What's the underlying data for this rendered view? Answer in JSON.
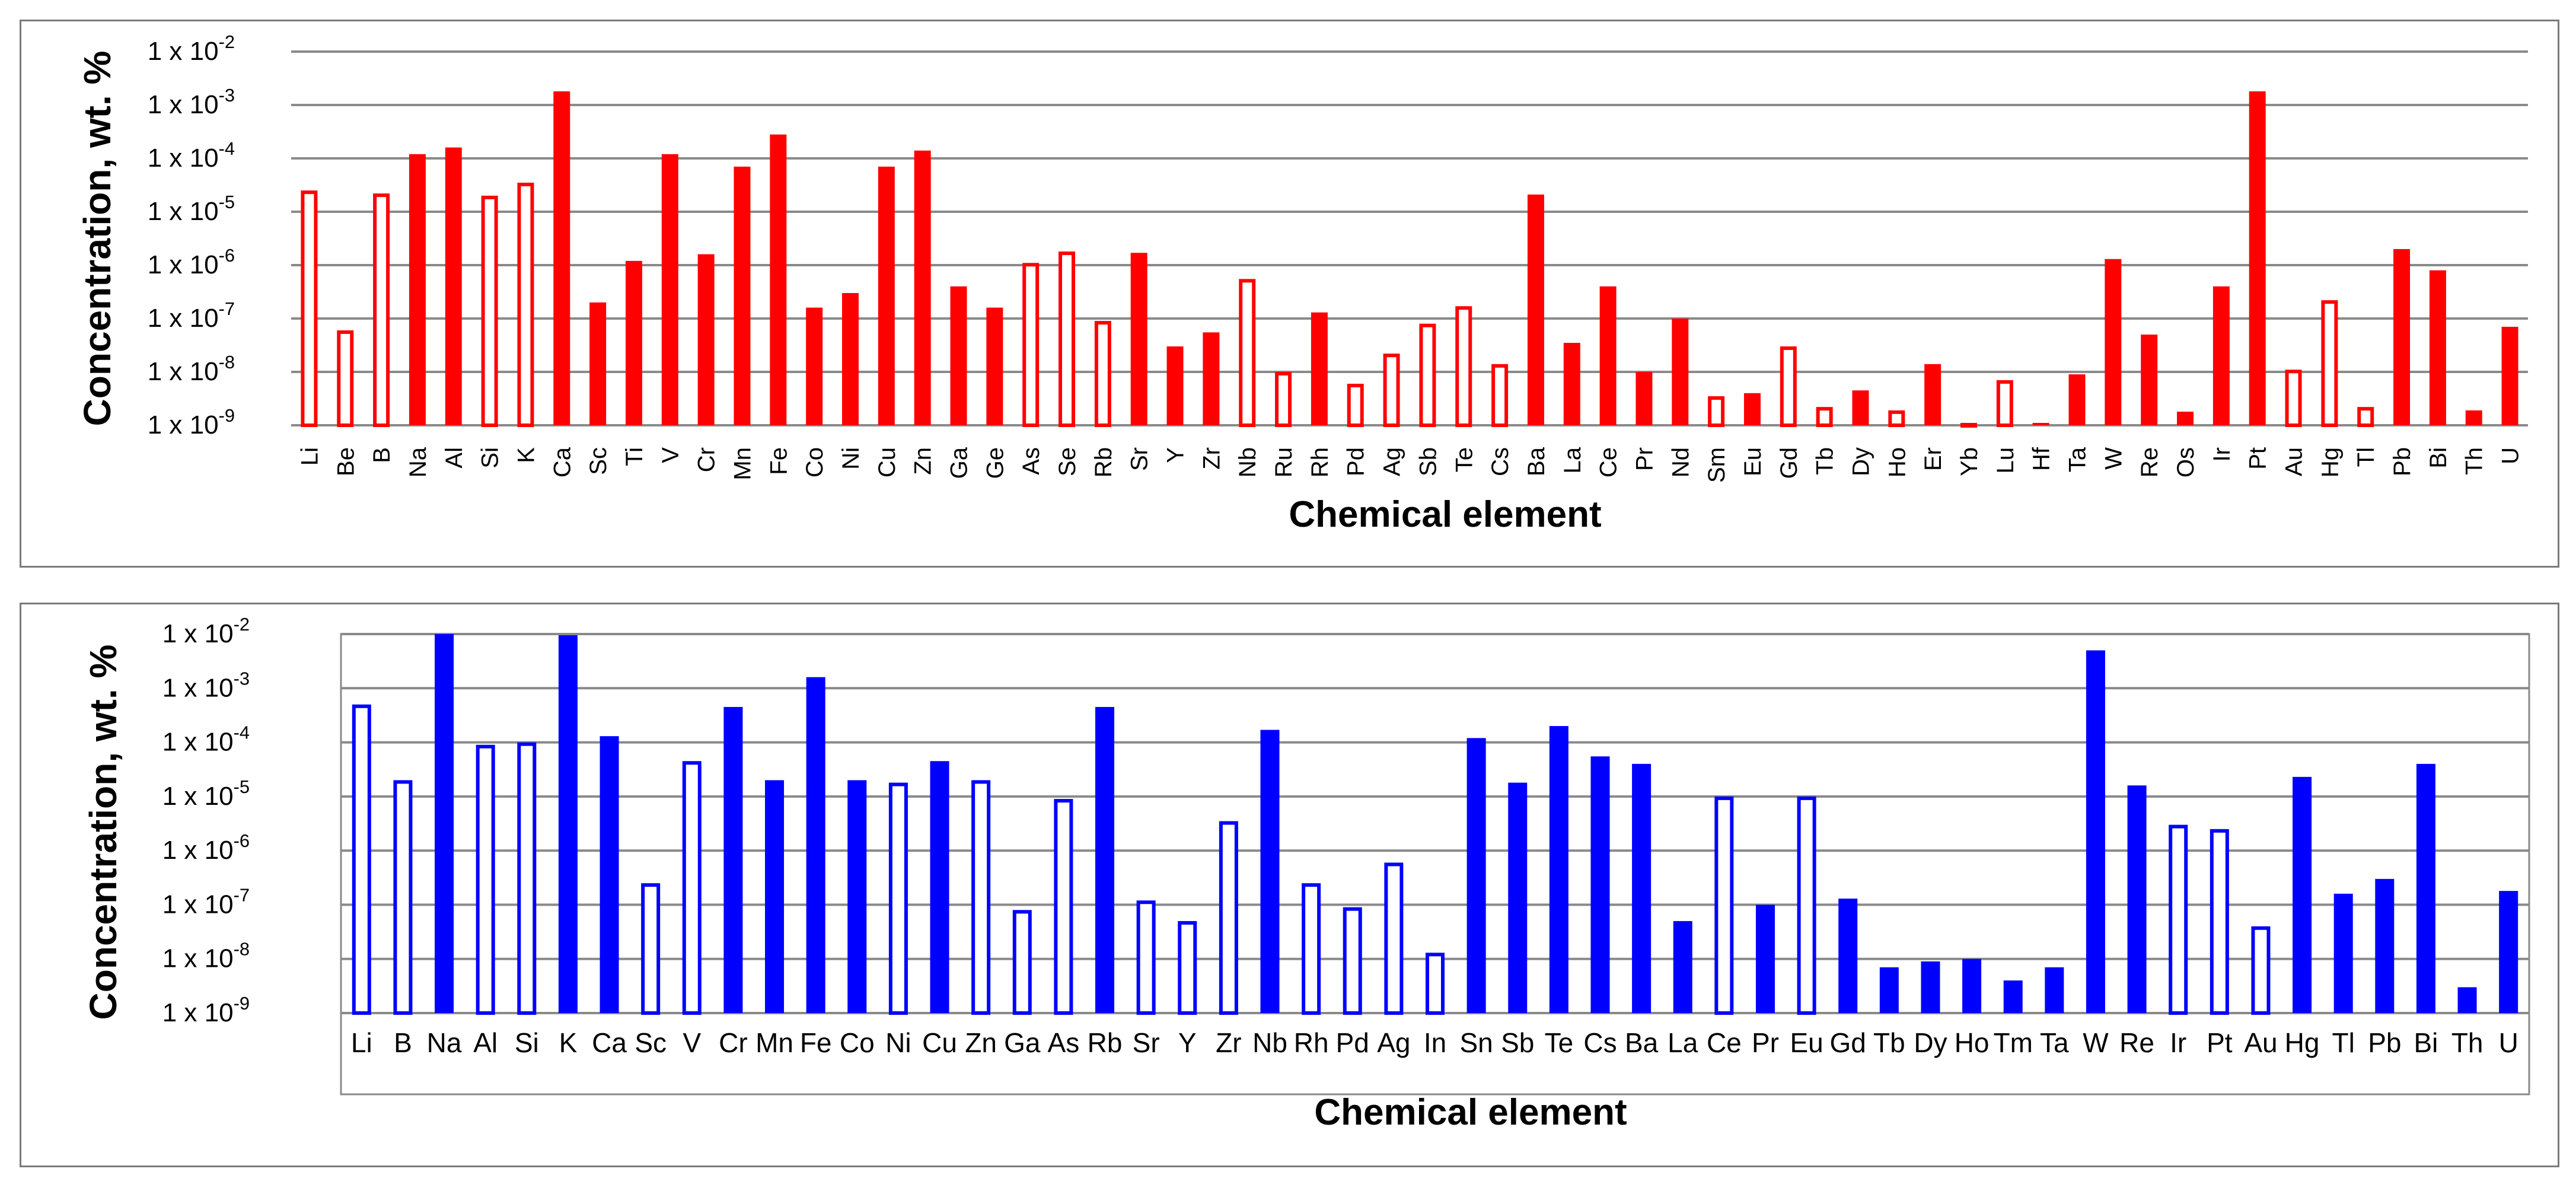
{
  "charts": [
    {
      "chart_data": {
        "type": "bar",
        "title": "",
        "xlabel": "Chemical element",
        "ylabel": "Concentration, wt. %",
        "yscale": "log",
        "ylim": [
          1e-09,
          0.01
        ],
        "yticks": [
          {
            "base": "1 x 10",
            "exp": "-9"
          },
          {
            "base": "1 x 10",
            "exp": "-8"
          },
          {
            "base": "1 x 10",
            "exp": "-7"
          },
          {
            "base": "1 x 10",
            "exp": "-6"
          },
          {
            "base": "1 x 10",
            "exp": "-5"
          },
          {
            "base": "1 x 10",
            "exp": "-4"
          },
          {
            "base": "1 x 10",
            "exp": "-3"
          },
          {
            "base": "1 x 10",
            "exp": "-2"
          }
        ],
        "color": "#ff0000",
        "grid": true,
        "legend": "none",
        "categories": [
          "Li",
          "Be",
          "B",
          "Na",
          "Al",
          "Si",
          "K",
          "Ca",
          "Sc",
          "Ti",
          "V",
          "Cr",
          "Mn",
          "Fe",
          "Co",
          "Ni",
          "Cu",
          "Zn",
          "Ga",
          "Ge",
          "As",
          "Se",
          "Rb",
          "Sr",
          "Y",
          "Zr",
          "Nb",
          "Ru",
          "Rh",
          "Pd",
          "Ag",
          "Sb",
          "Te",
          "Cs",
          "Ba",
          "La",
          "Ce",
          "Pr",
          "Nd",
          "Sm",
          "Eu",
          "Gd",
          "Tb",
          "Dy",
          "Ho",
          "Er",
          "Yb",
          "Lu",
          "Hf",
          "Ta",
          "W",
          "Re",
          "Os",
          "Ir",
          "Pt",
          "Au",
          "Hg",
          "Tl",
          "Pb",
          "Bi",
          "Th",
          "U"
        ],
        "values": [
          2.5e-05,
          6e-08,
          2.2e-05,
          0.00012,
          0.00016,
          2e-05,
          3.5e-05,
          0.0018,
          2e-07,
          1.2e-06,
          0.00012,
          1.6e-06,
          7e-05,
          0.00028,
          1.6e-07,
          3e-07,
          7e-05,
          0.00014,
          4e-07,
          1.6e-07,
          1.1e-06,
          1.8e-06,
          9e-08,
          1.7e-06,
          3e-08,
          5.5e-08,
          5.5e-07,
          1e-08,
          1.3e-07,
          6e-09,
          2.2e-08,
          8e-08,
          1.7e-07,
          1.4e-08,
          2.1e-05,
          3.5e-08,
          4e-07,
          1e-08,
          1e-07,
          3.5e-09,
          4e-09,
          3e-08,
          2.2e-09,
          4.5e-09,
          1.9e-09,
          1.4e-08,
          1.1e-09,
          7e-09,
          1.1e-09,
          9e-09,
          1.3e-06,
          5e-08,
          1.8e-09,
          4e-07,
          0.0018,
          1.1e-08,
          2.2e-07,
          2.2e-09,
          2e-06,
          8e-07,
          1.9e-09,
          7e-08
        ],
        "filled": [
          false,
          false,
          false,
          true,
          true,
          false,
          false,
          true,
          true,
          true,
          true,
          true,
          true,
          true,
          true,
          true,
          true,
          true,
          true,
          true,
          false,
          false,
          false,
          true,
          true,
          true,
          false,
          false,
          true,
          false,
          false,
          false,
          false,
          false,
          true,
          true,
          true,
          true,
          true,
          false,
          true,
          false,
          false,
          true,
          false,
          true,
          false,
          false,
          true,
          true,
          true,
          true,
          true,
          true,
          true,
          false,
          false,
          false,
          true,
          true,
          true,
          true
        ]
      }
    },
    {
      "chart_data": {
        "type": "bar",
        "title": "",
        "xlabel": "Chemical element",
        "ylabel": "Concentration, wt. %",
        "yscale": "log",
        "ylim": [
          1e-09,
          0.01
        ],
        "yticks": [
          {
            "base": "1 x 10",
            "exp": "-9"
          },
          {
            "base": "1 x 10",
            "exp": "-8"
          },
          {
            "base": "1 x 10",
            "exp": "-7"
          },
          {
            "base": "1 x 10",
            "exp": "-6"
          },
          {
            "base": "1 x 10",
            "exp": "-5"
          },
          {
            "base": "1 x 10",
            "exp": "-4"
          },
          {
            "base": "1 x 10",
            "exp": "-3"
          },
          {
            "base": "1 x 10",
            "exp": "-2"
          }
        ],
        "color": "#0000ff",
        "grid": true,
        "legend": "none",
        "categories": [
          "Li",
          "B",
          "Na",
          "Al",
          "Si",
          "K",
          "Ca",
          "Sc",
          "V",
          "Cr",
          "Mn",
          "Fe",
          "Co",
          "Ni",
          "Cu",
          "Zn",
          "Ga",
          "As",
          "Rb",
          "Sr",
          "Y",
          "Zr",
          "Nb",
          "Rh",
          "Pd",
          "Ag",
          "In",
          "Sn",
          "Sb",
          "Te",
          "Cs",
          "Ba",
          "La",
          "Ce",
          "Pr",
          "Eu",
          "Gd",
          "Tb",
          "Dy",
          "Ho",
          "Tm",
          "Ta",
          "W",
          "Re",
          "Ir",
          "Pt",
          "Au",
          "Hg",
          "Tl",
          "Pb",
          "Bi",
          "Th",
          "U"
        ],
        "values": [
          0.0005,
          2e-05,
          0.01,
          9e-05,
          0.0001,
          0.0095,
          0.00013,
          2.5e-07,
          4.5e-05,
          0.00045,
          2e-05,
          0.0016,
          2e-05,
          1.8e-05,
          4.5e-05,
          2e-05,
          8e-08,
          9e-06,
          0.00045,
          1.2e-07,
          5e-08,
          3.5e-06,
          0.00017,
          2.5e-07,
          9e-08,
          6e-07,
          1.3e-08,
          0.00012,
          1.8e-05,
          0.0002,
          5.5e-05,
          4e-05,
          5e-08,
          1e-05,
          1e-07,
          1e-05,
          1.3e-07,
          7e-09,
          9e-09,
          1e-08,
          4e-09,
          7e-09,
          0.005,
          1.6e-05,
          3e-06,
          2.5e-06,
          4e-08,
          2.3e-05,
          1.6e-07,
          3e-07,
          4e-05,
          3e-09,
          1.8e-07
        ],
        "filled": [
          false,
          false,
          true,
          false,
          false,
          true,
          true,
          false,
          false,
          true,
          true,
          true,
          true,
          false,
          true,
          false,
          false,
          false,
          true,
          false,
          false,
          false,
          true,
          false,
          false,
          false,
          false,
          true,
          true,
          true,
          true,
          true,
          true,
          false,
          true,
          false,
          true,
          true,
          true,
          true,
          true,
          true,
          true,
          true,
          false,
          false,
          false,
          true,
          true,
          true,
          true,
          true,
          true
        ]
      }
    }
  ]
}
